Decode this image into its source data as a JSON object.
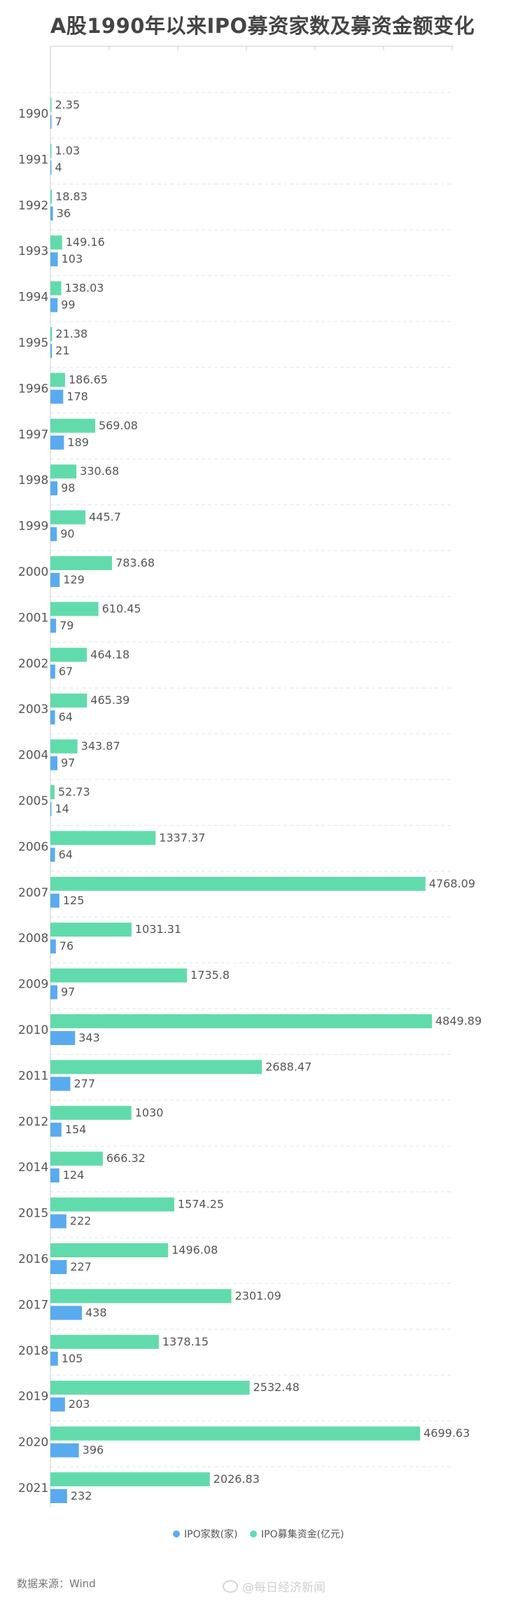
{
  "title": "A股1990年以来IPO募资家数及募资金额变化",
  "source": "数据来源：Wind",
  "watermark": "@每日经济新闻",
  "colors": {
    "count_bar": "#5aaaf0",
    "amount_bar": "#62dbac",
    "grid": "#e6e6e6",
    "axis": "#cccccc"
  },
  "chart_data": {
    "type": "bar",
    "orientation": "horizontal",
    "categories": [
      "1990",
      "1991",
      "1992",
      "1993",
      "1994",
      "1995",
      "1996",
      "1997",
      "1998",
      "1999",
      "2000",
      "2001",
      "2002",
      "2003",
      "2004",
      "2005",
      "2006",
      "2007",
      "2008",
      "2009",
      "2010",
      "2011",
      "2012",
      "2014",
      "2015",
      "2016",
      "2017",
      "2018",
      "2019",
      "2020",
      "2021"
    ],
    "series": [
      {
        "name": "IPO募集资金(亿元)",
        "color": "#62dbac",
        "values": [
          2.35,
          1.03,
          18.83,
          149.16,
          138.03,
          21.38,
          186.65,
          569.08,
          330.68,
          445.7,
          783.68,
          610.45,
          464.18,
          465.39,
          343.87,
          52.73,
          1337.37,
          4768.09,
          1031.31,
          1735.8,
          4849.89,
          2688.47,
          1030,
          666.32,
          1574.25,
          1496.08,
          2301.09,
          1378.15,
          2532.48,
          4699.63,
          2026.83
        ],
        "labels": [
          "2.35",
          "1.03",
          "18.83",
          "149.16",
          "138.03",
          "21.38",
          "186.65",
          "569.08",
          "330.68",
          "445.7",
          "783.68",
          "610.45",
          "464.18",
          "465.39",
          "343.87",
          "52.73",
          "1337.37",
          "4768.09",
          "1031.31",
          "1735.8",
          "4849.89",
          "2688.47",
          "1030",
          "666.32",
          "1574.25",
          "1496.08",
          "2301.09",
          "1378.15",
          "2532.48",
          "4699.63",
          "2026.83"
        ]
      },
      {
        "name": "IPO家数(家)",
        "color": "#5aaaf0",
        "values": [
          7,
          4,
          36,
          103,
          99,
          21,
          178,
          189,
          98,
          90,
          129,
          79,
          67,
          64,
          97,
          14,
          64,
          125,
          76,
          97,
          343,
          277,
          154,
          124,
          222,
          227,
          438,
          105,
          203,
          396,
          232
        ],
        "labels": [
          "7",
          "4",
          "36",
          "103",
          "99",
          "21",
          "178",
          "189",
          "98",
          "90",
          "129",
          "79",
          "67",
          "64",
          "97",
          "14",
          "64",
          "125",
          "76",
          "97",
          "343",
          "277",
          "154",
          "124",
          "222",
          "227",
          "438",
          "105",
          "203",
          "396",
          "232"
        ]
      }
    ],
    "legend": {
      "position": "bottom-center",
      "items": [
        "IPO家数(家)",
        "IPO募集资金(亿元)"
      ]
    },
    "grid": true
  }
}
